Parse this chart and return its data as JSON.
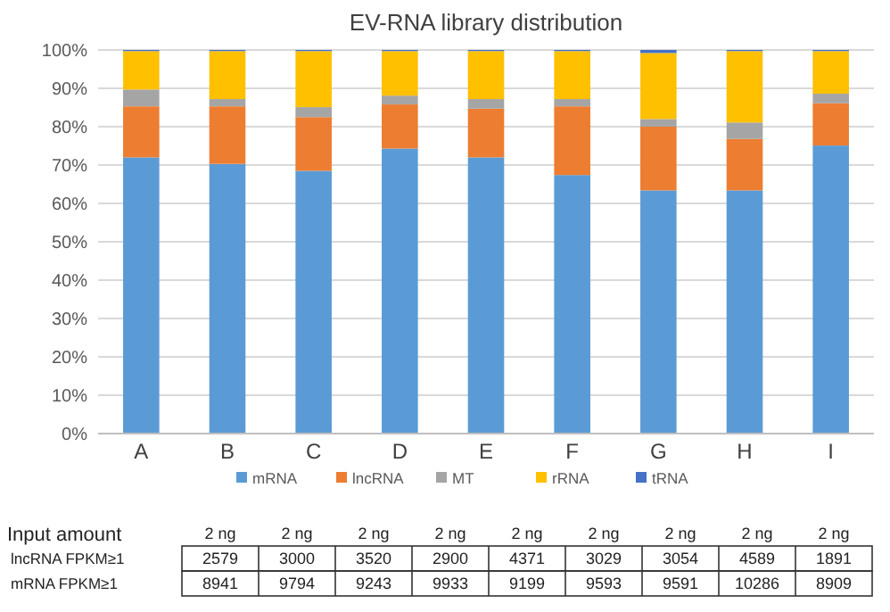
{
  "chart_data": {
    "type": "bar",
    "title": "EV-RNA library distribution",
    "stacked": true,
    "categories": [
      "A",
      "B",
      "C",
      "D",
      "E",
      "F",
      "G",
      "H",
      "I"
    ],
    "series": [
      {
        "name": "mRNA",
        "color": "#5b9bd5",
        "values": [
          72,
          70.3,
          68.5,
          74.3,
          72,
          67.4,
          63.4,
          63.4,
          75.1
        ]
      },
      {
        "name": "lncRNA",
        "color": "#ed7d31",
        "values": [
          13.3,
          15,
          14,
          11.5,
          12.7,
          17.9,
          16.6,
          13.4,
          11
        ]
      },
      {
        "name": "MT",
        "color": "#a5a5a5",
        "values": [
          4.4,
          1.9,
          2.6,
          2.3,
          2.5,
          1.9,
          2,
          4.3,
          2.5
        ]
      },
      {
        "name": "rRNA",
        "color": "#ffc000",
        "values": [
          10,
          12.5,
          14.6,
          11.6,
          12.5,
          12.5,
          17.2,
          18.6,
          11.1
        ]
      },
      {
        "name": "tRNA",
        "color": "#4472c4",
        "values": [
          0.3,
          0.3,
          0.3,
          0.3,
          0.3,
          0.3,
          0.8,
          0.3,
          0.3
        ]
      }
    ],
    "ylim": [
      0,
      100
    ],
    "yticks": [
      {
        "value": 0,
        "label": "0%"
      },
      {
        "value": 10,
        "label": "10%"
      },
      {
        "value": 20,
        "label": "20%"
      },
      {
        "value": 30,
        "label": "30%"
      },
      {
        "value": 40,
        "label": "40%"
      },
      {
        "value": 50,
        "label": "50%"
      },
      {
        "value": 60,
        "label": "60%"
      },
      {
        "value": 70,
        "label": "70%"
      },
      {
        "value": 80,
        "label": "80%"
      },
      {
        "value": 90,
        "label": "90%"
      },
      {
        "value": 100,
        "label": "100%"
      }
    ],
    "grid": "y",
    "legend": "bottom",
    "annotations": [
      "Input amount",
      "2 ng",
      "2 ng",
      "2 ng",
      "2 ng",
      "2 ng",
      "2 ng",
      "2 ng",
      "2 ng",
      "2 ng",
      "lncRNA FPKM≥1",
      "2579",
      "3000",
      "3520",
      "2900",
      "4371",
      "3029",
      "3054",
      "4589",
      "1891",
      "mRNA FPKM≥1",
      "8941",
      "9794",
      "9243",
      "9933",
      "9199",
      "9593",
      "9591",
      "10286",
      "8909"
    ]
  }
}
